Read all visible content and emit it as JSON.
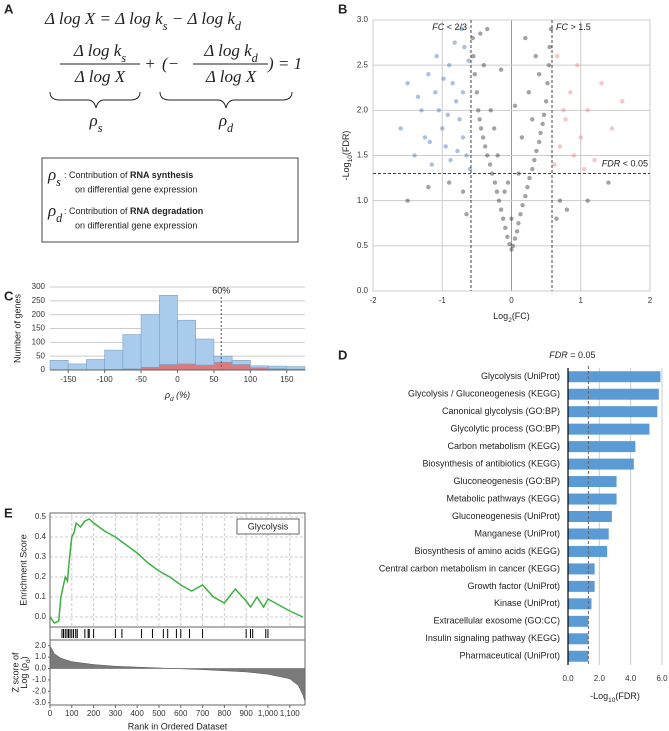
{
  "panels": [
    "A",
    "B",
    "C",
    "D",
    "E"
  ],
  "formula": {
    "eq1": [
      "Δ log X = Δ log k",
      "s",
      " − Δ log k",
      "d"
    ],
    "frac1_num": [
      "Δ log k",
      "s"
    ],
    "frac1_den": [
      "Δ log X"
    ],
    "plus": "+",
    "open": "(−",
    "frac2_num": [
      "Δ log k",
      "d"
    ],
    "frac2_den": [
      "Δ log X"
    ],
    "close": ") = 1",
    "brace1": [
      "ρ",
      "s"
    ],
    "brace2": [
      "ρ",
      "d"
    ]
  },
  "legend_box": [
    {
      "symbol": [
        "ρ",
        "s"
      ],
      "line1": [
        " : Contribution of ",
        "RNA synthesis"
      ],
      "line2": "on differential gene expression"
    },
    {
      "symbol": [
        "ρ",
        "d"
      ],
      "line1": [
        " : Contribution of ",
        "RNA degradation"
      ],
      "line2": "on differential gene expression"
    }
  ],
  "chart_data": [
    {
      "type": "scatter",
      "x_label": [
        "Log",
        "2",
        "(FC)"
      ],
      "y_label": [
        "-Log",
        "10",
        "(FDR)"
      ],
      "xlim": [
        -2,
        2
      ],
      "xticks": [
        -2,
        -1,
        0,
        1,
        2
      ],
      "ylim": [
        0,
        3
      ],
      "yticks": [
        {
          "value": 0,
          "label": "0.0"
        },
        {
          "value": 0.5,
          "label": "0.5"
        },
        {
          "value": 1,
          "label": "1.0"
        },
        {
          "value": 1.5,
          "label": "1.5"
        },
        {
          "value": 2,
          "label": "2.0"
        },
        {
          "value": 2.5,
          "label": "2.5"
        },
        {
          "value": 3,
          "label": "3.0"
        }
      ],
      "grid": true,
      "vlines": [
        -0.585,
        0.585
      ],
      "hline": 1.301,
      "annotations": [
        [
          "FC",
          " < 2/3"
        ],
        [
          "FC",
          " > 1.5"
        ],
        [
          "FDR",
          " < 0.05"
        ]
      ],
      "series": [
        {
          "color": "#333333",
          "x": [
            0,
            0.02,
            -0.03,
            0.05,
            -0.06,
            0.08,
            -0.09,
            0.1,
            -0.12,
            0.13,
            -0.15,
            0.16,
            -0.18,
            0.2,
            -0.21,
            0.23,
            -0.24,
            0.26,
            -0.28,
            0.3,
            -0.31,
            0.33,
            -0.35,
            0.36,
            -0.38,
            0.4,
            -0.41,
            0.42,
            -0.44,
            0.45,
            -0.46,
            0.47,
            -0.48,
            0.5,
            -0.5,
            0.52,
            -0.53,
            0.54,
            -0.55,
            0.55,
            -0.56,
            0.57,
            -0.2,
            0.1,
            -0.3,
            0.25,
            -0.1,
            0.35,
            -0.4,
            0,
            -0.25,
            0.15,
            -0.45,
            0.3,
            -0.05,
            0.4,
            0.7,
            -0.7,
            0.8,
            -0.9,
            1.1,
            -1.2,
            0.65,
            -0.65,
            1.4,
            -1.5,
            -0.35,
            0.2,
            -0.15,
            0.05
          ],
          "y": [
            0.46,
            0.5,
            0.52,
            0.58,
            0.6,
            0.66,
            0.7,
            0.75,
            0.8,
            0.85,
            0.9,
            0.95,
            1.0,
            1.05,
            1.1,
            1.15,
            1.2,
            1.25,
            1.3,
            1.35,
            1.4,
            1.45,
            1.5,
            1.55,
            1.6,
            1.65,
            1.7,
            1.75,
            1.8,
            1.85,
            1.9,
            1.95,
            2.0,
            2.1,
            2.2,
            2.3,
            2.4,
            2.5,
            2.6,
            2.7,
            2.8,
            2.9,
            1.5,
            1.3,
            2.0,
            2.2,
            1.1,
            2.6,
            2.5,
            0.8,
            1.8,
            1.7,
            2.85,
            1.9,
            1.2,
            2.4,
            1.0,
            1.1,
            0.9,
            1.2,
            1.0,
            1.15,
            0.8,
            0.85,
            1.2,
            1.0,
            2.9,
            2.8,
            2.45,
            2.05
          ]
        },
        {
          "color": "#4472c4",
          "x": [
            -0.6,
            -0.65,
            -0.7,
            -0.75,
            -0.8,
            -0.85,
            -0.9,
            -0.95,
            -1.0,
            -1.05,
            -1.1,
            -1.15,
            -1.2,
            -1.25,
            -1.3,
            -1.4,
            -1.5,
            -1.6,
            -0.68,
            -0.72,
            -0.62,
            -0.88,
            -0.78,
            -0.98,
            -1.08,
            -0.82,
            -1.35,
            -0.92,
            -1.18,
            -0.7
          ],
          "y": [
            1.35,
            1.5,
            1.7,
            1.9,
            2.1,
            2.3,
            2.5,
            1.6,
            1.8,
            2.0,
            2.2,
            1.4,
            2.4,
            1.7,
            2.0,
            1.5,
            2.3,
            1.8,
            2.7,
            2.9,
            2.55,
            1.45,
            1.55,
            2.35,
            2.6,
            2.75,
            2.15,
            1.95,
            1.65,
            2.2
          ]
        },
        {
          "color": "#f08080",
          "x": [
            0.62,
            0.7,
            0.78,
            0.85,
            0.9,
            0.95,
            1.0,
            1.1,
            1.2,
            1.3,
            1.45,
            0.66,
            0.75,
            1.05,
            1.6
          ],
          "y": [
            1.4,
            1.6,
            1.9,
            2.2,
            1.5,
            2.5,
            1.7,
            2.0,
            1.45,
            2.3,
            1.8,
            2.6,
            2.0,
            1.35,
            2.1
          ]
        }
      ]
    },
    {
      "type": "histogram",
      "x_label": [
        "ρ",
        "d",
        " (%)"
      ],
      "y_label": "Number of genes",
      "bins": [
        -175,
        -150,
        -125,
        -100,
        -75,
        -50,
        -25,
        0,
        25,
        50,
        75,
        100,
        125,
        150,
        175
      ],
      "xlim": [
        -175,
        175
      ],
      "xticks": [
        -150,
        -100,
        -50,
        0,
        50,
        100,
        150
      ],
      "ylim": [
        0,
        300
      ],
      "yticks": [
        0,
        50,
        100,
        150,
        200,
        250,
        300
      ],
      "grid": true,
      "vline": 60,
      "vline_label": "60%",
      "series": [
        {
          "color": "#e07a7a",
          "values": [
            0,
            0,
            1,
            2,
            4,
            10,
            20,
            22,
            18,
            28,
            20,
            8,
            5,
            3
          ]
        },
        {
          "color": "#a9cbec",
          "values": [
            35,
            22,
            37,
            70,
            124,
            190,
            250,
            158,
            94,
            22,
            15,
            7,
            9,
            9
          ]
        }
      ]
    },
    {
      "type": "barh",
      "title": [
        "FDR",
        " = 0.05"
      ],
      "x_label": [
        "-Log",
        "10",
        "(FDR)"
      ],
      "categories": [
        "Glycolysis (UniProt)",
        "Glycolysis / Gluconeogenesis (KEGG)",
        "Canonical glycolysis (GO:BP)",
        "Glycolytic process (GO:BP)",
        "Carbon metabolism (KEGG)",
        "Biosynthesis of antibiotics (KEGG)",
        "Gluconeogenesis (GO:BP)",
        "Metabolic pathways (KEGG)",
        "Gluconeogenesis (UniProt)",
        "Manganese (UniProt)",
        "Biosynthesis of amino acids (KEGG)",
        "Central carbon metabolism in cancer (KEGG)",
        "Growth factor (UniProt)",
        "Kinase (UniProt)",
        "Extracellular exosome (GO:CC)",
        "Insulin signaling pathway (KEGG)",
        "Pharmaceutical (UniProt)"
      ],
      "values": [
        5.9,
        5.8,
        5.7,
        5.2,
        4.3,
        4.2,
        3.1,
        3.1,
        2.8,
        2.6,
        2.5,
        1.7,
        1.7,
        1.5,
        1.3,
        1.3,
        1.3
      ],
      "color": "#5b9bd5",
      "xlim": [
        0,
        6
      ],
      "xticks": [
        {
          "value": 0,
          "label": "0.0"
        },
        {
          "value": 2,
          "label": "2.0"
        },
        {
          "value": 4,
          "label": "4.0"
        },
        {
          "value": 6,
          "label": "6.0"
        }
      ],
      "grid": true,
      "threshold": 1.301
    },
    {
      "type": "line",
      "y_label": "Enrichment Score",
      "label": "Glycolysis",
      "color": "#3cb043",
      "x": [
        0,
        20,
        40,
        50,
        60,
        70,
        80,
        90,
        100,
        110,
        120,
        140,
        160,
        180,
        200,
        250,
        300,
        350,
        400,
        450,
        500,
        550,
        600,
        650,
        700,
        750,
        800,
        850,
        900,
        920,
        950,
        980,
        1000,
        1050,
        1100,
        1160
      ],
      "values": [
        0,
        -0.03,
        -0.02,
        0.1,
        0.15,
        0.2,
        0.18,
        0.3,
        0.4,
        0.42,
        0.47,
        0.45,
        0.48,
        0.49,
        0.47,
        0.43,
        0.4,
        0.36,
        0.32,
        0.27,
        0.23,
        0.2,
        0.16,
        0.13,
        0.16,
        0.1,
        0.07,
        0.14,
        0.08,
        0.05,
        0.1,
        0.05,
        0.09,
        0.06,
        0.03,
        0
      ],
      "xlim": [
        0,
        1170
      ],
      "ylim": [
        -0.05,
        0.52
      ],
      "yticks": [
        {
          "value": 0,
          "label": "0.0"
        },
        {
          "value": 0.1,
          "label": "0.1"
        },
        {
          "value": 0.2,
          "label": "0.2"
        },
        {
          "value": 0.3,
          "label": "0.3"
        },
        {
          "value": 0.4,
          "label": "0.4"
        },
        {
          "value": 0.5,
          "label": "0.5"
        }
      ],
      "grid": true,
      "hits": [
        55,
        62,
        70,
        78,
        85,
        92,
        100,
        108,
        118,
        125,
        160,
        175,
        180,
        200,
        300,
        330,
        420,
        470,
        520,
        540,
        580,
        600,
        640,
        700,
        900,
        920,
        930,
        990,
        1000
      ]
    },
    {
      "type": "area",
      "y_label": [
        "Z score of",
        "Log (ρ",
        "d",
        ")"
      ],
      "x_label": "Rank in Ordered Dataset",
      "color": "#7a7a7a",
      "x": [
        0,
        20,
        50,
        100,
        200,
        300,
        500,
        700,
        900,
        1000,
        1100,
        1140,
        1160,
        1170
      ],
      "values": [
        2.0,
        1.3,
        0.9,
        0.6,
        0.35,
        0.2,
        0.05,
        -0.1,
        -0.3,
        -0.5,
        -0.9,
        -1.5,
        -2.3,
        -2.9
      ],
      "xlim": [
        0,
        1170
      ],
      "xticks": [
        0,
        100,
        200,
        300,
        400,
        500,
        600,
        700,
        800,
        900,
        {
          "value": 1000,
          "label": "1,000"
        },
        {
          "value": 1100,
          "label": "1,100"
        }
      ],
      "ylim": [
        -3.2,
        2.5
      ],
      "yticks": [
        {
          "value": -3,
          "label": "-3.0"
        },
        {
          "value": -2,
          "label": "-2.0"
        },
        {
          "value": -1,
          "label": "-1.0"
        },
        {
          "value": 0,
          "label": "0.0"
        },
        {
          "value": 1,
          "label": "1.0"
        },
        {
          "value": 2,
          "label": "2.0"
        }
      ]
    }
  ]
}
